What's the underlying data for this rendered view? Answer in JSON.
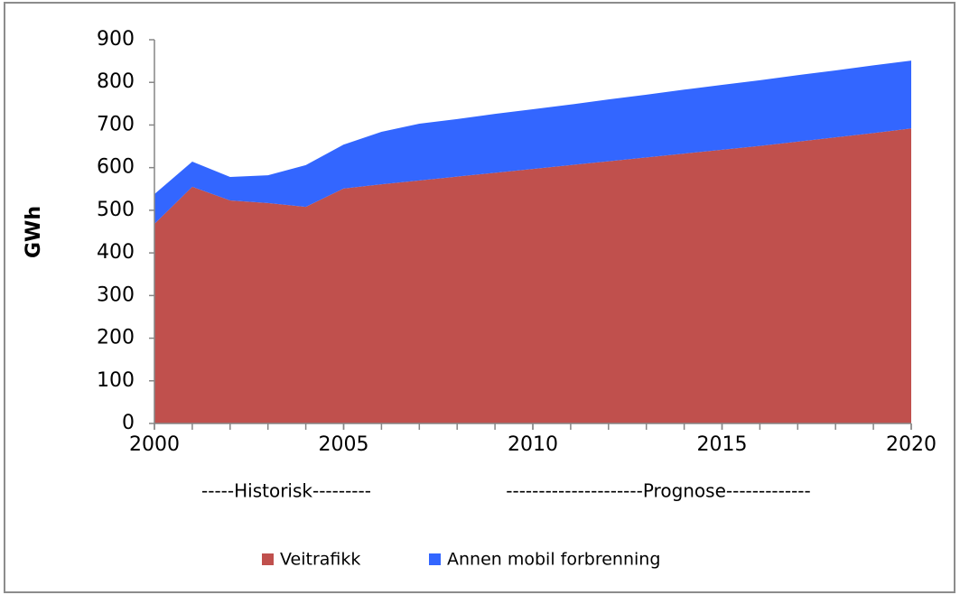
{
  "chart_data": {
    "type": "stacked-area",
    "ylabel": "GWh",
    "x": [
      2000,
      2001,
      2002,
      2003,
      2004,
      2005,
      2006,
      2007,
      2008,
      2009,
      2010,
      2011,
      2012,
      2013,
      2014,
      2015,
      2016,
      2017,
      2018,
      2019,
      2020
    ],
    "series": [
      {
        "name": "Veitrafikk",
        "color": "#c0504d",
        "values": [
          468,
          555,
          523,
          517,
          508,
          551,
          561,
          570,
          579,
          588,
          597,
          606,
          615,
          624,
          633,
          642,
          651,
          661,
          671,
          681,
          692
        ]
      },
      {
        "name": "Annen mobil forbrenning",
        "color": "#3366ff",
        "values": [
          70,
          59,
          55,
          65,
          98,
          103,
          123,
          133,
          135,
          138,
          140,
          142,
          145,
          147,
          150,
          152,
          154,
          156,
          157,
          159,
          159
        ]
      }
    ],
    "xlim": [
      2000,
      2020
    ],
    "xticks": [
      2000,
      2005,
      2010,
      2015,
      2020
    ],
    "ylim": [
      0,
      900
    ],
    "yticks": [
      0,
      100,
      200,
      300,
      400,
      500,
      600,
      700,
      800,
      900
    ],
    "annotations": [
      "-----Historisk---------",
      "---------------------Prognose-------------"
    ],
    "legend": "bottom"
  }
}
